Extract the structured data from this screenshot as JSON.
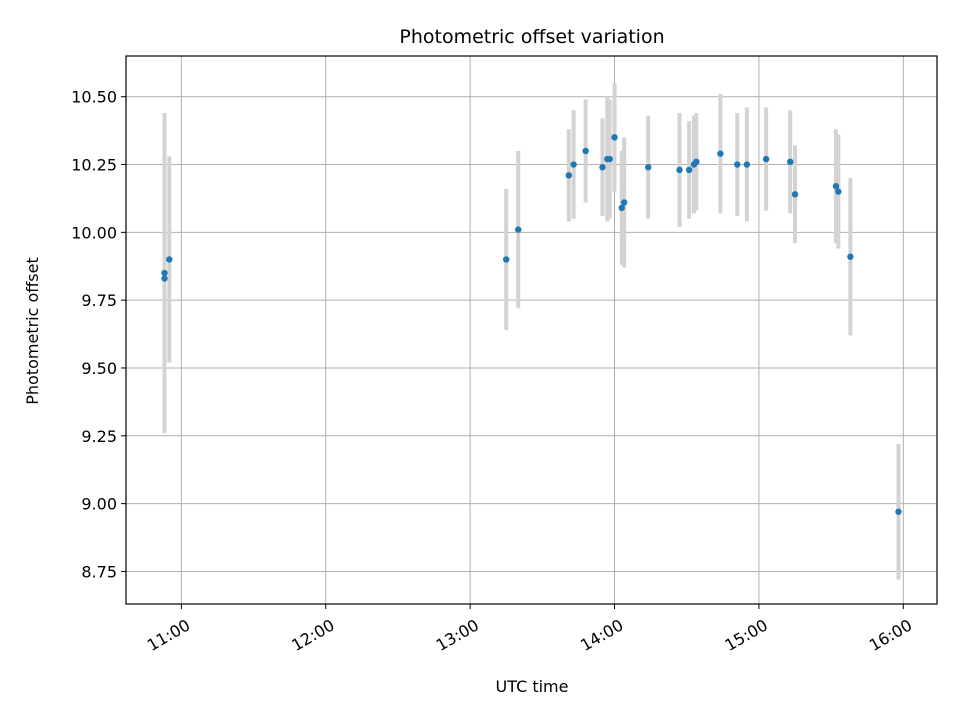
{
  "chart_data": {
    "type": "scatter",
    "title": "Photometric offset variation",
    "xlabel": "UTC time",
    "ylabel": "Photometric offset",
    "xlim": [
      "10:37",
      "16:14"
    ],
    "ylim": [
      8.63,
      10.65
    ],
    "x_ticks": [
      {
        "time": "11:00",
        "label": "11:00"
      },
      {
        "time": "12:00",
        "label": "12:00"
      },
      {
        "time": "13:00",
        "label": "13:00"
      },
      {
        "time": "14:00",
        "label": "14:00"
      },
      {
        "time": "15:00",
        "label": "15:00"
      },
      {
        "time": "16:00",
        "label": "16:00"
      }
    ],
    "y_ticks": [
      {
        "value": 8.75,
        "label": "8.75"
      },
      {
        "value": 9.0,
        "label": "9.00"
      },
      {
        "value": 9.25,
        "label": "9.25"
      },
      {
        "value": 9.5,
        "label": "9.50"
      },
      {
        "value": 9.75,
        "label": "9.75"
      },
      {
        "value": 10.0,
        "label": "10.00"
      },
      {
        "value": 10.25,
        "label": "10.25"
      },
      {
        "value": 10.5,
        "label": "10.50"
      }
    ],
    "grid": true,
    "colors": {
      "point": "#1f77b4",
      "errorbar": "#d3d3d3",
      "grid": "#b0b0b0"
    },
    "points": [
      {
        "time": "10:53",
        "y": 9.85,
        "yerr": 0.59
      },
      {
        "time": "10:53",
        "y": 9.83,
        "yerr": 0.49
      },
      {
        "time": "10:55",
        "y": 9.9,
        "yerr": 0.38
      },
      {
        "time": "13:15",
        "y": 9.9,
        "yerr": 0.26
      },
      {
        "time": "13:20",
        "y": 10.01,
        "yerr": 0.29
      },
      {
        "time": "13:41",
        "y": 10.21,
        "yerr": 0.17
      },
      {
        "time": "13:43",
        "y": 10.25,
        "yerr": 0.2
      },
      {
        "time": "13:48",
        "y": 10.3,
        "yerr": 0.19
      },
      {
        "time": "13:55",
        "y": 10.24,
        "yerr": 0.18
      },
      {
        "time": "13:57",
        "y": 10.27,
        "yerr": 0.23
      },
      {
        "time": "13:58",
        "y": 10.27,
        "yerr": 0.22
      },
      {
        "time": "14:00",
        "y": 10.35,
        "yerr": 0.2
      },
      {
        "time": "14:03",
        "y": 10.09,
        "yerr": 0.21
      },
      {
        "time": "14:04",
        "y": 10.11,
        "yerr": 0.24
      },
      {
        "time": "14:14",
        "y": 10.24,
        "yerr": 0.19
      },
      {
        "time": "14:27",
        "y": 10.23,
        "yerr": 0.21
      },
      {
        "time": "14:31",
        "y": 10.23,
        "yerr": 0.18
      },
      {
        "time": "14:33",
        "y": 10.25,
        "yerr": 0.18
      },
      {
        "time": "14:34",
        "y": 10.26,
        "yerr": 0.18
      },
      {
        "time": "14:44",
        "y": 10.29,
        "yerr": 0.22
      },
      {
        "time": "14:51",
        "y": 10.25,
        "yerr": 0.19
      },
      {
        "time": "14:55",
        "y": 10.25,
        "yerr": 0.21
      },
      {
        "time": "15:03",
        "y": 10.27,
        "yerr": 0.19
      },
      {
        "time": "15:13",
        "y": 10.26,
        "yerr": 0.19
      },
      {
        "time": "15:15",
        "y": 10.14,
        "yerr": 0.18
      },
      {
        "time": "15:32",
        "y": 10.17,
        "yerr": 0.21
      },
      {
        "time": "15:33",
        "y": 10.15,
        "yerr": 0.21
      },
      {
        "time": "15:38",
        "y": 9.91,
        "yerr": 0.29
      },
      {
        "time": "15:58",
        "y": 8.97,
        "yerr": 0.25
      }
    ]
  }
}
